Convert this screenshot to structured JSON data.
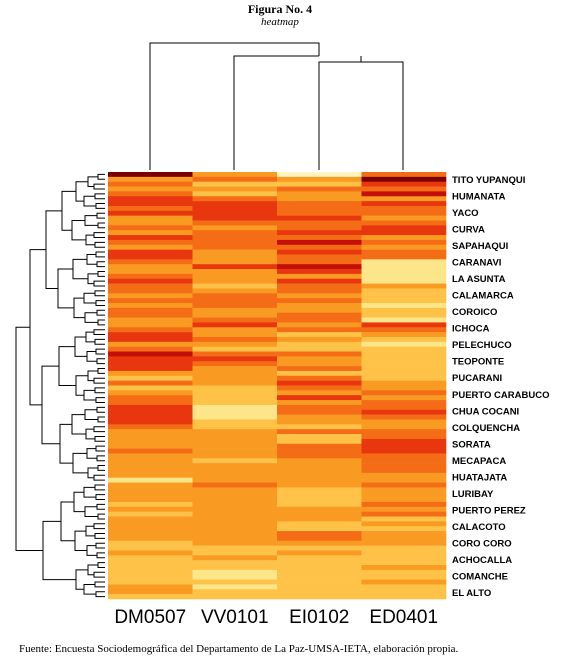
{
  "figure": {
    "title": "Figura No. 4",
    "subtitle": "heatmap",
    "source": "Fuente: Encuesta Sociodemográfica del Departamento de La Paz-UMSA-IETA, elaboración propia."
  },
  "chart_data": {
    "type": "heatmap",
    "columns": [
      "DM0507",
      "VV0101",
      "EI0102",
      "ED0401"
    ],
    "row_labels_shown": [
      "TITO YUPANQUI",
      "HUMANATA",
      "YACO",
      "CURVA",
      "SAPAHAQUI",
      "CARANAVI",
      "LA ASUNTA",
      "CALAMARCA",
      "COROICO",
      "ICHOCA",
      "PELECHUCO",
      "TEOPONTE",
      "PUCARANI",
      "PUERTO CARABUCO",
      "CHUA COCANI",
      "COLQUENCHA",
      "SORATA",
      "MECAPACA",
      "HUATAJATA",
      "LURIBAY",
      "PUERTO PEREZ",
      "CALACOTO",
      "CORO CORO",
      "ACHOCALLA",
      "COMANCHE",
      "EL ALTO"
    ],
    "color_scale": [
      "#fff3c0",
      "#fde58a",
      "#fdc247",
      "#f99a22",
      "#f46c16",
      "#e8370e",
      "#c20f08",
      "#7a0000"
    ],
    "values": [
      [
        7,
        3,
        0,
        4
      ],
      [
        3,
        4,
        3,
        7
      ],
      [
        4,
        2,
        2,
        5
      ],
      [
        3,
        3,
        4,
        4
      ],
      [
        4,
        2,
        3,
        6
      ],
      [
        5,
        4,
        3,
        3
      ],
      [
        5,
        5,
        4,
        5
      ],
      [
        4,
        5,
        4,
        4
      ],
      [
        5,
        5,
        4,
        4
      ],
      [
        3,
        5,
        5,
        3
      ],
      [
        3,
        4,
        4,
        4
      ],
      [
        4,
        3,
        4,
        5
      ],
      [
        3,
        4,
        5,
        5
      ],
      [
        5,
        4,
        4,
        3
      ],
      [
        4,
        4,
        6,
        4
      ],
      [
        3,
        4,
        4,
        3
      ],
      [
        5,
        3,
        5,
        4
      ],
      [
        5,
        3,
        4,
        4
      ],
      [
        4,
        3,
        4,
        1
      ],
      [
        3,
        5,
        6,
        1
      ],
      [
        3,
        3,
        5,
        1
      ],
      [
        4,
        3,
        3,
        1
      ],
      [
        5,
        3,
        5,
        1
      ],
      [
        4,
        2,
        4,
        3
      ],
      [
        4,
        3,
        4,
        2
      ],
      [
        3,
        4,
        3,
        2
      ],
      [
        4,
        4,
        4,
        2
      ],
      [
        3,
        4,
        3,
        1
      ],
      [
        4,
        3,
        3,
        2
      ],
      [
        4,
        3,
        4,
        2
      ],
      [
        3,
        4,
        4,
        1
      ],
      [
        3,
        5,
        3,
        5
      ],
      [
        4,
        3,
        4,
        4
      ],
      [
        5,
        3,
        2,
        3
      ],
      [
        5,
        4,
        3,
        2
      ],
      [
        3,
        3,
        2,
        1
      ],
      [
        4,
        2,
        2,
        2
      ],
      [
        6,
        4,
        4,
        2
      ],
      [
        5,
        5,
        3,
        2
      ],
      [
        5,
        4,
        3,
        2
      ],
      [
        5,
        3,
        4,
        2
      ],
      [
        3,
        3,
        2,
        2
      ],
      [
        2,
        3,
        4,
        2
      ],
      [
        4,
        3,
        5,
        3
      ],
      [
        2,
        2,
        4,
        3
      ],
      [
        3,
        2,
        3,
        4
      ],
      [
        4,
        2,
        5,
        3
      ],
      [
        4,
        2,
        3,
        4
      ],
      [
        5,
        1,
        4,
        4
      ],
      [
        5,
        1,
        4,
        5
      ],
      [
        5,
        1,
        3,
        4
      ],
      [
        5,
        2,
        3,
        3
      ],
      [
        4,
        2,
        2,
        3
      ],
      [
        3,
        3,
        4,
        4
      ],
      [
        3,
        3,
        2,
        4
      ],
      [
        3,
        3,
        2,
        5
      ],
      [
        3,
        3,
        4,
        5
      ],
      [
        4,
        3,
        4,
        5
      ],
      [
        3,
        3,
        4,
        4
      ],
      [
        3,
        2,
        3,
        4
      ],
      [
        3,
        3,
        3,
        4
      ],
      [
        3,
        3,
        3,
        4
      ],
      [
        3,
        3,
        3,
        3
      ],
      [
        1,
        3,
        3,
        3
      ],
      [
        3,
        4,
        3,
        4
      ],
      [
        3,
        3,
        2,
        3
      ],
      [
        3,
        3,
        2,
        3
      ],
      [
        3,
        3,
        2,
        3
      ],
      [
        2,
        3,
        2,
        4
      ],
      [
        3,
        3,
        3,
        3
      ],
      [
        2,
        3,
        3,
        4
      ],
      [
        3,
        3,
        3,
        2
      ],
      [
        3,
        3,
        2,
        3
      ],
      [
        3,
        3,
        2,
        2
      ],
      [
        3,
        3,
        4,
        3
      ],
      [
        3,
        3,
        4,
        3
      ],
      [
        2,
        3,
        3,
        3
      ],
      [
        2,
        2,
        2,
        2
      ],
      [
        3,
        2,
        3,
        2
      ],
      [
        2,
        3,
        2,
        2
      ],
      [
        2,
        2,
        2,
        2
      ],
      [
        2,
        2,
        2,
        3
      ],
      [
        2,
        1,
        2,
        2
      ],
      [
        2,
        1,
        2,
        2
      ],
      [
        2,
        2,
        2,
        3
      ],
      [
        3,
        1,
        2,
        2
      ],
      [
        3,
        2,
        2,
        2
      ],
      [
        2,
        2,
        2,
        2
      ]
    ]
  }
}
